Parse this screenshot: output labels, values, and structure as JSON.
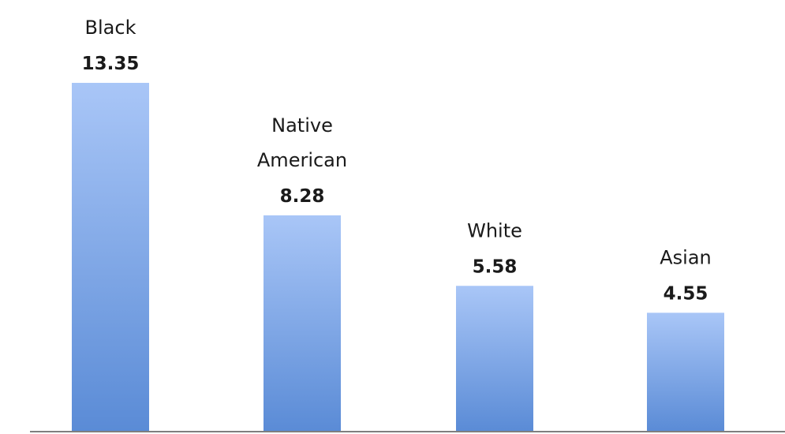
{
  "chart_data": {
    "type": "bar",
    "categories": [
      [
        "Black"
      ],
      [
        "Native",
        "American"
      ],
      [
        "White"
      ],
      [
        "Asian"
      ]
    ],
    "values": [
      13.35,
      8.28,
      5.58,
      4.55
    ],
    "value_labels": [
      "13.35",
      "8.28",
      "5.58",
      "4.55"
    ],
    "title": "",
    "xlabel": "",
    "ylabel": "",
    "ylim": [
      0,
      13.35
    ],
    "grid": false,
    "legend": "none",
    "colors": {
      "bar_top": "#a9c6f7",
      "bar_bottom": "#5a8bd6",
      "axis": "#7f7f7f",
      "text": "#1a1a1a"
    }
  }
}
